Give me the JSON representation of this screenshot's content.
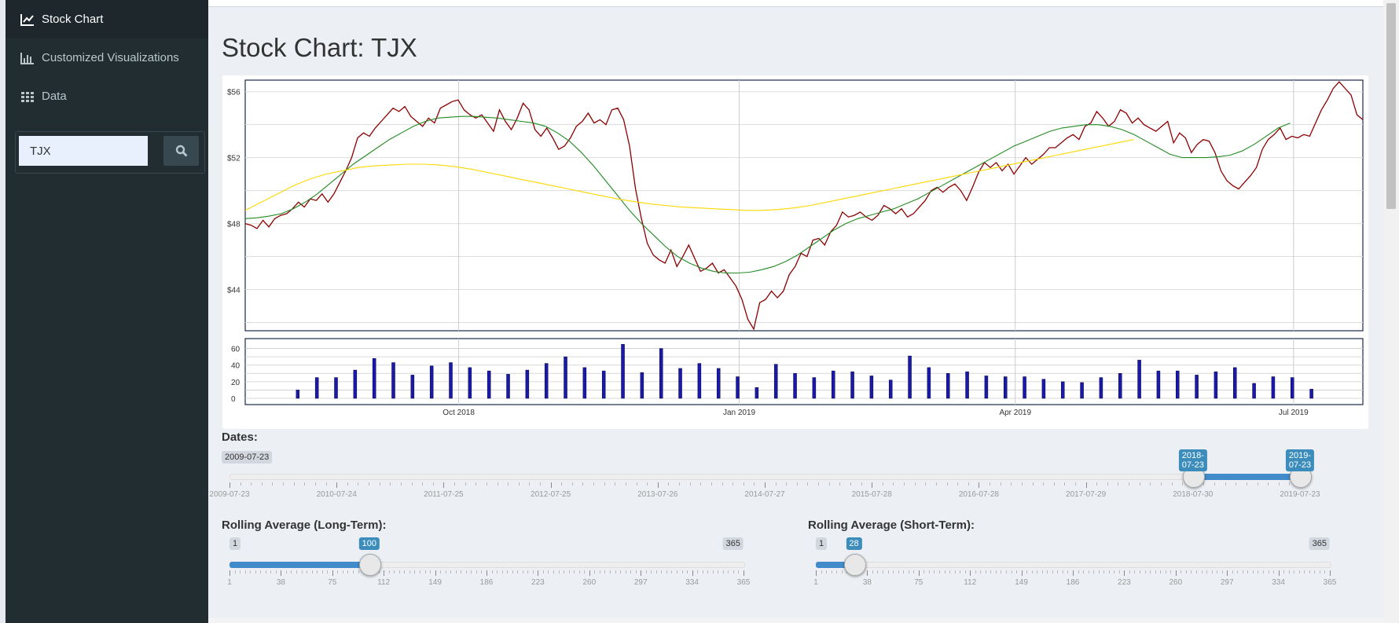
{
  "sidebar": {
    "items": [
      {
        "label": "Stock Chart",
        "icon": "line-chart-icon"
      },
      {
        "label": "Customized Visualizations",
        "icon": "bar-chart-icon"
      },
      {
        "label": "Data",
        "icon": "table-icon"
      }
    ],
    "search": {
      "value": "TJX",
      "button_icon": "search-icon"
    }
  },
  "main": {
    "title": "Stock Chart: TJX"
  },
  "colors": {
    "price": "#8b0000",
    "short_ma": "#228b22",
    "long_ma": "#ffd700",
    "volume": "#1a1aaa"
  },
  "chart_data": [
    {
      "type": "line",
      "title": "",
      "y_ticks": [
        "$56",
        "$52",
        "$48",
        "$44"
      ],
      "ylim": [
        41.5,
        56.7
      ],
      "series": [
        {
          "role": "price",
          "color": "#8b0000",
          "values": [
            48.0,
            47.9,
            47.7,
            48.2,
            47.8,
            48.3,
            48.5,
            48.6,
            48.9,
            49.3,
            49.0,
            49.5,
            49.4,
            49.8,
            49.3,
            49.8,
            50.5,
            51.2,
            52.0,
            53.2,
            53.5,
            53.3,
            53.8,
            54.2,
            54.6,
            55.0,
            54.8,
            55.1,
            54.5,
            54.2,
            53.9,
            54.4,
            54.1,
            55.0,
            55.2,
            55.4,
            55.5,
            54.9,
            54.6,
            54.4,
            54.6,
            54.1,
            53.6,
            54.9,
            54.2,
            53.7,
            54.4,
            55.3,
            54.9,
            53.7,
            53.3,
            53.8,
            53.2,
            52.5,
            52.7,
            53.2,
            53.9,
            54.2,
            54.7,
            54.1,
            54.3,
            54.0,
            54.9,
            55.0,
            54.3,
            52.7,
            50.1,
            48.3,
            46.8,
            46.1,
            45.8,
            45.6,
            46.4,
            45.4,
            46.0,
            46.7,
            45.9,
            45.1,
            45.3,
            45.6,
            45.0,
            45.2,
            44.7,
            44.2,
            43.4,
            42.2,
            41.6,
            43.2,
            43.4,
            43.9,
            43.5,
            43.9,
            44.9,
            45.4,
            46.2,
            46.0,
            47.0,
            47.1,
            46.7,
            47.5,
            47.9,
            48.7,
            48.4,
            48.5,
            48.7,
            48.4,
            48.2,
            48.5,
            49.1,
            48.9,
            48.6,
            48.9,
            48.4,
            48.6,
            49.0,
            49.4,
            50.0,
            50.2,
            49.9,
            50.2,
            50.4,
            50.0,
            49.4,
            50.2,
            51.1,
            51.7,
            51.4,
            51.7,
            51.2,
            51.6,
            51.0,
            51.5,
            52.0,
            51.6,
            51.9,
            52.2,
            52.6,
            52.6,
            52.9,
            53.2,
            53.4,
            53.1,
            53.9,
            54.1,
            54.8,
            54.4,
            53.9,
            54.2,
            54.9,
            54.7,
            54.1,
            54.4,
            54.0,
            53.8,
            53.6,
            53.9,
            54.2,
            52.9,
            53.5,
            53.2,
            52.3,
            52.8,
            53.1,
            53.0,
            52.3,
            51.2,
            50.6,
            50.3,
            50.1,
            50.5,
            50.9,
            51.4,
            52.5,
            53.1,
            53.4,
            53.8,
            53.1,
            53.3,
            53.2,
            53.4,
            53.3,
            54.1,
            54.9,
            55.5,
            56.2,
            56.6,
            56.2,
            55.8,
            54.6,
            54.3
          ]
        },
        {
          "role": "short-term average",
          "color": "#228b22",
          "values": [
            48.3,
            48.35,
            48.45,
            48.6,
            48.9,
            49.3,
            49.8,
            50.4,
            51.0,
            51.6,
            52.1,
            52.6,
            53.1,
            53.5,
            53.9,
            54.2,
            54.4,
            54.45,
            54.5,
            54.5,
            54.45,
            54.4,
            54.3,
            54.2,
            54.1,
            53.9,
            53.5,
            53.0,
            52.3,
            51.5,
            50.6,
            49.7,
            48.8,
            48.0,
            47.3,
            46.6,
            46.0,
            45.6,
            45.3,
            45.1,
            45.0,
            45.0,
            45.05,
            45.2,
            45.4,
            45.7,
            46.1,
            46.6,
            47.1,
            47.6,
            48.0,
            48.3,
            48.5,
            48.7,
            48.9,
            49.2,
            49.5,
            49.9,
            50.3,
            50.7,
            51.1,
            51.5,
            51.9,
            52.3,
            52.7,
            53.0,
            53.3,
            53.6,
            53.8,
            53.9,
            54.0,
            54.0,
            53.9,
            53.7,
            53.4,
            53.0,
            52.6,
            52.2,
            52.0,
            52.0,
            52.0,
            52.05,
            52.15,
            52.4,
            52.8,
            53.3,
            53.8,
            54.1
          ]
        },
        {
          "role": "long-term average",
          "color": "#ffd700",
          "values": [
            48.8,
            49.3,
            49.8,
            50.3,
            50.7,
            51.0,
            51.2,
            51.4,
            51.5,
            51.55,
            51.6,
            51.6,
            51.55,
            51.45,
            51.3,
            51.1,
            50.9,
            50.7,
            50.5,
            50.3,
            50.1,
            49.9,
            49.7,
            49.5,
            49.35,
            49.2,
            49.1,
            49.0,
            48.95,
            48.9,
            48.85,
            48.8,
            48.8,
            48.85,
            48.95,
            49.1,
            49.3,
            49.5,
            49.7,
            49.9,
            50.1,
            50.3,
            50.5,
            50.7,
            50.9,
            51.1,
            51.3,
            51.5,
            51.7,
            51.9,
            52.1,
            52.3,
            52.5,
            52.7,
            52.9,
            53.1
          ]
        }
      ]
    },
    {
      "type": "bar",
      "title": "",
      "y_ticks": [
        "60",
        "40",
        "20",
        "0"
      ],
      "ylim": [
        0,
        70
      ],
      "x_ticks": [
        "Oct 2018",
        "Jan 2019",
        "Apr 2019",
        "Jul 2019"
      ],
      "values": [
        10,
        25,
        25,
        34,
        48,
        43,
        28,
        39,
        43,
        37,
        33,
        29,
        34,
        42,
        50,
        37,
        33,
        65,
        31,
        60,
        36,
        42,
        36,
        26,
        13,
        41,
        30,
        25,
        33,
        32,
        27,
        22,
        51,
        37,
        30,
        32,
        27,
        26,
        26,
        23,
        20,
        19,
        25,
        30,
        46,
        33,
        33,
        28,
        32,
        37,
        18,
        26,
        25,
        11
      ]
    }
  ],
  "sliders": {
    "dates": {
      "label": "Dates:",
      "min_label": "2009-07-23",
      "from": "2018-07-23",
      "to": "2019-07-23",
      "from_fraction": 0.9,
      "to_fraction": 1.0,
      "ticks": [
        "2009-07-23",
        "2010-07-24",
        "2011-07-25",
        "2012-07-25",
        "2013-07-26",
        "2014-07-27",
        "2015-07-28",
        "2016-07-28",
        "2017-07-29",
        "2018-07-30",
        "2019-07-23"
      ]
    },
    "long": {
      "label": "Rolling Average (Long-Term):",
      "min": "1",
      "max": "365",
      "value": "100",
      "min_value": 1,
      "max_value": 365,
      "num_value": 100,
      "ticks": [
        "1",
        "38",
        "75",
        "112",
        "149",
        "186",
        "223",
        "260",
        "297",
        "334",
        "365"
      ]
    },
    "short": {
      "label": "Rolling Average (Short-Term):",
      "min": "1",
      "max": "365",
      "value": "28",
      "min_value": 1,
      "max_value": 365,
      "num_value": 28,
      "ticks": [
        "1",
        "38",
        "75",
        "112",
        "149",
        "186",
        "223",
        "260",
        "297",
        "334",
        "365"
      ]
    }
  }
}
